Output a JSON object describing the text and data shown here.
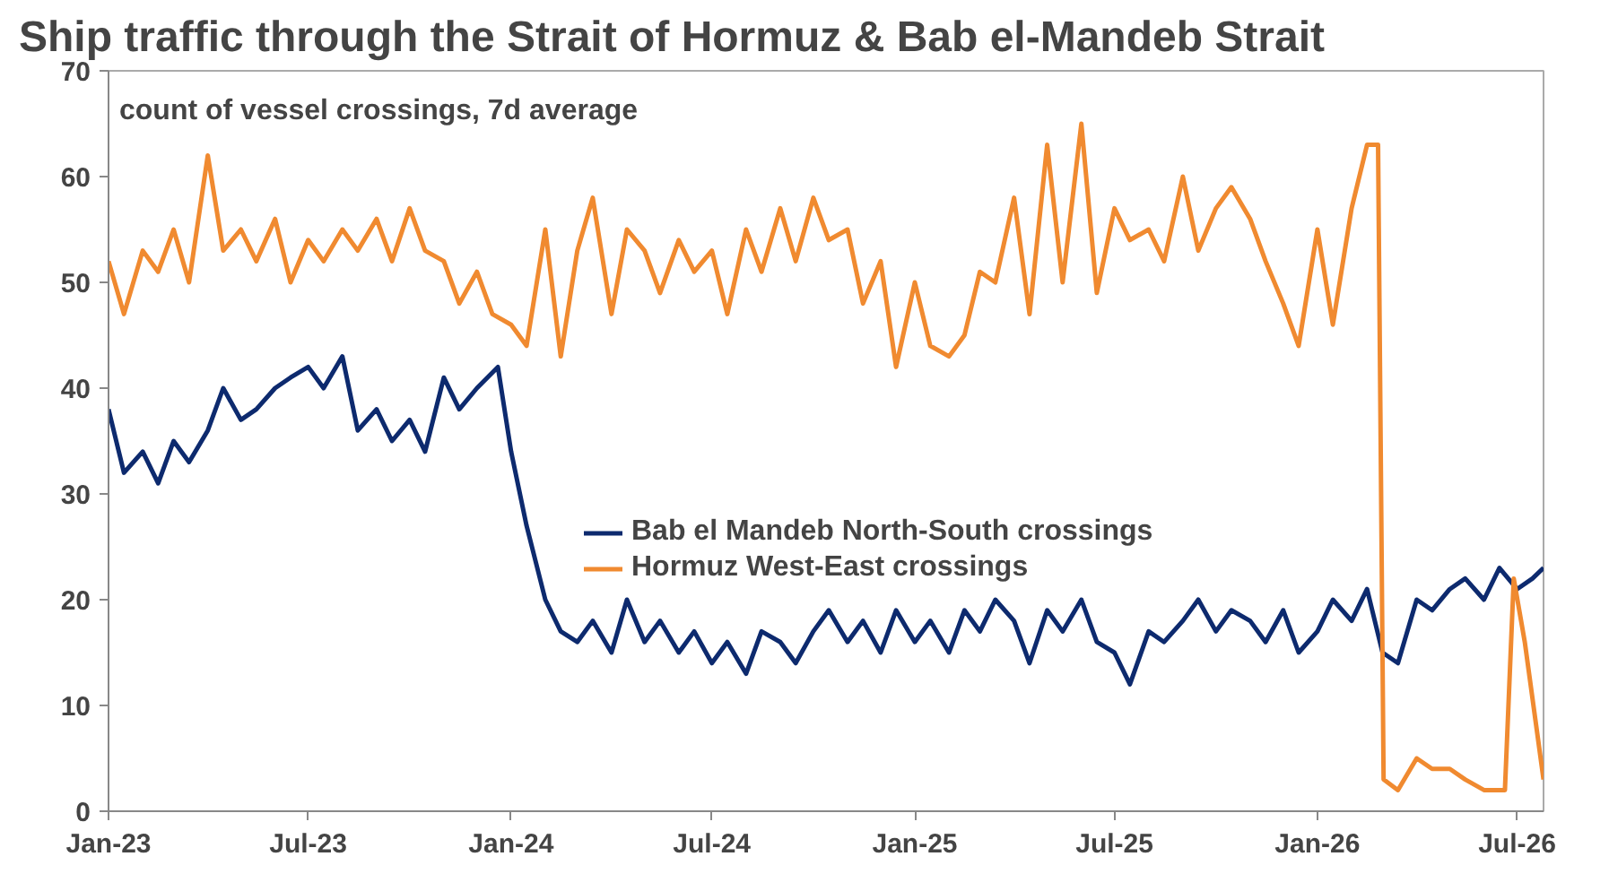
{
  "chart_data": {
    "type": "line",
    "title": "Ship traffic through the Strait of Hormuz & Bab el-Mandeb Strait",
    "annotations": [
      "count of vessel crossings, 7d average"
    ],
    "xlim": [
      "2023-01-01",
      "2026-07-25"
    ],
    "xticks": [
      {
        "value": "2023-01-01",
        "label": "Jan-23"
      },
      {
        "value": "2023-07-01",
        "label": "Jul-23"
      },
      {
        "value": "2024-01-01",
        "label": "Jan-24"
      },
      {
        "value": "2024-07-01",
        "label": "Jul-24"
      },
      {
        "value": "2025-01-01",
        "label": "Jan-25"
      },
      {
        "value": "2025-07-01",
        "label": "Jul-25"
      },
      {
        "value": "2026-01-01",
        "label": "Jan-26"
      },
      {
        "value": "2026-07-01",
        "label": "Jul-26"
      }
    ],
    "ylim": [
      0,
      70
    ],
    "yticks": [
      0,
      10,
      20,
      30,
      40,
      50,
      60,
      70
    ],
    "grid": false,
    "legend": "center",
    "marker": "none",
    "line_style": "solid",
    "series": [
      {
        "name": "Bab el Mandeb North-South crossings",
        "color": "#0d2a6e",
        "x": [
          "2023-01-01",
          "2023-01-15",
          "2023-02-01",
          "2023-02-15",
          "2023-03-01",
          "2023-03-15",
          "2023-04-01",
          "2023-04-15",
          "2023-05-01",
          "2023-05-15",
          "2023-06-01",
          "2023-06-15",
          "2023-07-01",
          "2023-07-15",
          "2023-08-01",
          "2023-08-15",
          "2023-09-01",
          "2023-09-15",
          "2023-10-01",
          "2023-10-15",
          "2023-11-01",
          "2023-11-15",
          "2023-12-01",
          "2023-12-20",
          "2024-01-01",
          "2024-01-15",
          "2024-02-01",
          "2024-02-15",
          "2024-03-01",
          "2024-03-15",
          "2024-04-01",
          "2024-04-15",
          "2024-05-01",
          "2024-05-15",
          "2024-06-01",
          "2024-06-15",
          "2024-07-01",
          "2024-07-15",
          "2024-08-01",
          "2024-08-15",
          "2024-09-01",
          "2024-09-15",
          "2024-10-01",
          "2024-10-15",
          "2024-11-01",
          "2024-11-15",
          "2024-12-01",
          "2024-12-15",
          "2025-01-01",
          "2025-01-15",
          "2025-02-01",
          "2025-02-15",
          "2025-03-01",
          "2025-03-15",
          "2025-04-01",
          "2025-04-15",
          "2025-05-01",
          "2025-05-15",
          "2025-06-01",
          "2025-06-15",
          "2025-07-01",
          "2025-07-15",
          "2025-08-01",
          "2025-08-15",
          "2025-09-01",
          "2025-09-15",
          "2025-10-01",
          "2025-10-15",
          "2025-11-01",
          "2025-11-15",
          "2025-12-01",
          "2025-12-15",
          "2026-01-01",
          "2026-01-15",
          "2026-02-01",
          "2026-02-15",
          "2026-03-01",
          "2026-03-15",
          "2026-04-01",
          "2026-04-15",
          "2026-05-01",
          "2026-05-15",
          "2026-06-01",
          "2026-06-15",
          "2026-07-01",
          "2026-07-15",
          "2026-07-25"
        ],
        "values": [
          38,
          32,
          34,
          31,
          35,
          33,
          36,
          40,
          37,
          38,
          40,
          41,
          42,
          40,
          43,
          36,
          38,
          35,
          37,
          34,
          41,
          38,
          40,
          42,
          34,
          27,
          20,
          17,
          16,
          18,
          15,
          20,
          16,
          18,
          15,
          17,
          14,
          16,
          13,
          17,
          16,
          14,
          17,
          19,
          16,
          18,
          15,
          19,
          16,
          18,
          15,
          19,
          17,
          20,
          18,
          14,
          19,
          17,
          20,
          16,
          15,
          12,
          17,
          16,
          18,
          20,
          17,
          19,
          18,
          16,
          19,
          15,
          17,
          20,
          18,
          21,
          15,
          14,
          20,
          19,
          21,
          22,
          20,
          23,
          21,
          22,
          23
        ]
      },
      {
        "name": "Hormuz West-East crossings",
        "color": "#f08a30",
        "x": [
          "2023-01-01",
          "2023-01-15",
          "2023-02-01",
          "2023-02-15",
          "2023-03-01",
          "2023-03-15",
          "2023-04-01",
          "2023-04-15",
          "2023-05-01",
          "2023-05-15",
          "2023-06-01",
          "2023-06-15",
          "2023-07-01",
          "2023-07-15",
          "2023-08-01",
          "2023-08-15",
          "2023-09-01",
          "2023-09-15",
          "2023-10-01",
          "2023-10-15",
          "2023-11-01",
          "2023-11-15",
          "2023-12-01",
          "2023-12-15",
          "2024-01-01",
          "2024-01-15",
          "2024-02-01",
          "2024-02-15",
          "2024-03-01",
          "2024-03-15",
          "2024-04-01",
          "2024-04-15",
          "2024-05-01",
          "2024-05-15",
          "2024-06-01",
          "2024-06-15",
          "2024-07-01",
          "2024-07-15",
          "2024-08-01",
          "2024-08-15",
          "2024-09-01",
          "2024-09-15",
          "2024-10-01",
          "2024-10-15",
          "2024-11-01",
          "2024-11-15",
          "2024-12-01",
          "2024-12-15",
          "2025-01-01",
          "2025-01-15",
          "2025-02-01",
          "2025-02-15",
          "2025-03-01",
          "2025-03-15",
          "2025-04-01",
          "2025-04-15",
          "2025-05-01",
          "2025-05-15",
          "2025-06-01",
          "2025-06-15",
          "2025-07-01",
          "2025-07-15",
          "2025-08-01",
          "2025-08-15",
          "2025-09-01",
          "2025-09-15",
          "2025-10-01",
          "2025-10-15",
          "2025-11-01",
          "2025-11-15",
          "2025-12-01",
          "2025-12-15",
          "2026-01-01",
          "2026-01-15",
          "2026-02-01",
          "2026-02-15",
          "2026-02-25",
          "2026-03-02",
          "2026-03-15",
          "2026-04-01",
          "2026-04-15",
          "2026-05-01",
          "2026-05-15",
          "2026-06-01",
          "2026-06-20",
          "2026-06-28",
          "2026-07-08",
          "2026-07-25"
        ],
        "values": [
          52,
          47,
          53,
          51,
          55,
          50,
          62,
          53,
          55,
          52,
          56,
          50,
          54,
          52,
          55,
          53,
          56,
          52,
          57,
          53,
          52,
          48,
          51,
          47,
          46,
          44,
          55,
          43,
          53,
          58,
          47,
          55,
          53,
          49,
          54,
          51,
          53,
          47,
          55,
          51,
          57,
          52,
          58,
          54,
          55,
          48,
          52,
          42,
          50,
          44,
          43,
          45,
          51,
          50,
          58,
          47,
          63,
          50,
          65,
          49,
          57,
          54,
          55,
          52,
          60,
          53,
          57,
          59,
          56,
          52,
          48,
          44,
          55,
          46,
          57,
          63,
          63,
          3,
          2,
          5,
          4,
          4,
          3,
          2,
          2,
          22,
          16,
          3
        ]
      }
    ]
  }
}
